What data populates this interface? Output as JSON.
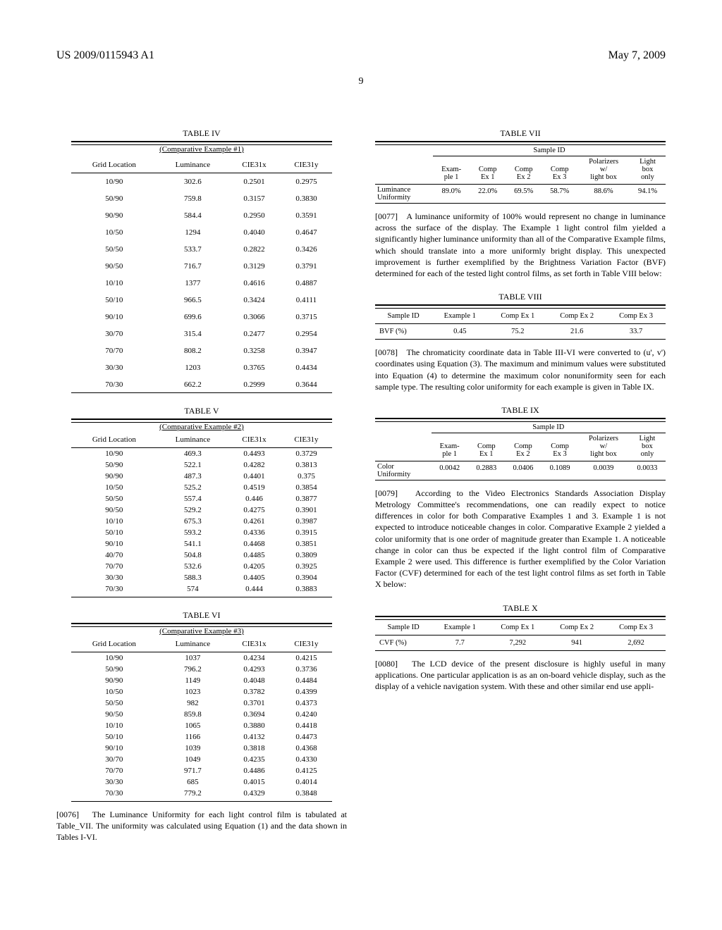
{
  "header": {
    "left": "US 2009/0115943 A1",
    "right": "May 7, 2009",
    "pagenum": "9"
  },
  "table4": {
    "title": "TABLE IV",
    "sub": "(Comparative Example #1)",
    "cols": [
      "Grid Location",
      "Luminance",
      "CIE31x",
      "CIE31y"
    ],
    "rows": [
      [
        "10/90",
        "302.6",
        "0.2501",
        "0.2975"
      ],
      [
        "50/90",
        "759.8",
        "0.3157",
        "0.3830"
      ],
      [
        "90/90",
        "584.4",
        "0.2950",
        "0.3591"
      ],
      [
        "10/50",
        "1294",
        "0.4040",
        "0.4647"
      ],
      [
        "50/50",
        "533.7",
        "0.2822",
        "0.3426"
      ],
      [
        "90/50",
        "716.7",
        "0.3129",
        "0.3791"
      ],
      [
        "10/10",
        "1377",
        "0.4616",
        "0.4887"
      ],
      [
        "50/10",
        "966.5",
        "0.3424",
        "0.4111"
      ],
      [
        "90/10",
        "699.6",
        "0.3066",
        "0.3715"
      ],
      [
        "30/70",
        "315.4",
        "0.2477",
        "0.2954"
      ],
      [
        "70/70",
        "808.2",
        "0.3258",
        "0.3947"
      ],
      [
        "30/30",
        "1203",
        "0.3765",
        "0.4434"
      ],
      [
        "70/30",
        "662.2",
        "0.2999",
        "0.3644"
      ]
    ]
  },
  "table5": {
    "title": "TABLE V",
    "sub": "(Comparative Example #2)",
    "cols": [
      "Grid Location",
      "Luminance",
      "CIE31x",
      "CIE31y"
    ],
    "rows": [
      [
        "10/90",
        "469.3",
        "0.4493",
        "0.3729"
      ],
      [
        "50/90",
        "522.1",
        "0.4282",
        "0.3813"
      ],
      [
        "90/90",
        "487.3",
        "0.4401",
        "0.375"
      ],
      [
        "10/50",
        "525.2",
        "0.4519",
        "0.3854"
      ],
      [
        "50/50",
        "557.4",
        "0.446",
        "0.3877"
      ],
      [
        "90/50",
        "529.2",
        "0.4275",
        "0.3901"
      ],
      [
        "10/10",
        "675.3",
        "0.4261",
        "0.3987"
      ],
      [
        "50/10",
        "593.2",
        "0.4336",
        "0.3915"
      ],
      [
        "90/10",
        "541.1",
        "0.4468",
        "0.3851"
      ],
      [
        "40/70",
        "504.8",
        "0.4485",
        "0.3809"
      ],
      [
        "70/70",
        "532.6",
        "0.4205",
        "0.3925"
      ],
      [
        "30/30",
        "588.3",
        "0.4405",
        "0.3904"
      ],
      [
        "70/30",
        "574",
        "0.444",
        "0.3883"
      ]
    ]
  },
  "table6": {
    "title": "TABLE VI",
    "sub": "(Comparative Example #3)",
    "cols": [
      "Grid Location",
      "Luminance",
      "CIE31x",
      "CIE31y"
    ],
    "rows": [
      [
        "10/90",
        "1037",
        "0.4234",
        "0.4215"
      ],
      [
        "50/90",
        "796.2",
        "0.4293",
        "0.3736"
      ],
      [
        "90/90",
        "1149",
        "0.4048",
        "0.4484"
      ],
      [
        "10/50",
        "1023",
        "0.3782",
        "0.4399"
      ],
      [
        "50/50",
        "982",
        "0.3701",
        "0.4373"
      ],
      [
        "90/50",
        "859.8",
        "0.3694",
        "0.4240"
      ],
      [
        "10/10",
        "1065",
        "0.3880",
        "0.4418"
      ],
      [
        "50/10",
        "1166",
        "0.4132",
        "0.4473"
      ],
      [
        "90/10",
        "1039",
        "0.3818",
        "0.4368"
      ],
      [
        "30/70",
        "1049",
        "0.4235",
        "0.4330"
      ],
      [
        "70/70",
        "971.7",
        "0.4486",
        "0.4125"
      ],
      [
        "30/30",
        "685",
        "0.4015",
        "0.4014"
      ],
      [
        "70/30",
        "779.2",
        "0.4329",
        "0.3848"
      ]
    ]
  },
  "para76": {
    "num": "[0076]",
    "text": "The Luminance Uniformity for each light control film is tabulated at Table_VII. The uniformity was calculated using Equation (1) and the data shown in Tables I-VI."
  },
  "table7": {
    "title": "TABLE VII",
    "grouphdr": "Sample ID",
    "cols": [
      "",
      "Exam-\nple 1",
      "Comp\nEx 1",
      "Comp\nEx 2",
      "Comp\nEx 3",
      "Polarizers\nw/\nlight box",
      "Light\nbox\nonly"
    ],
    "rowlabel": "Luminance Uniformity",
    "vals": [
      "89.0%",
      "22.0%",
      "69.5%",
      "58.7%",
      "88.6%",
      "94.1%"
    ]
  },
  "para77": {
    "num": "[0077]",
    "text": "A luminance uniformity of 100% would represent no change in luminance across the surface of the display. The Example 1 light control film yielded a significantly higher luminance uniformity than all of the Comparative Example films, which should translate into a more uniformly bright display. This unexpected improvement is further exemplified by the Brightness Variation Factor (BVF) determined for each of the tested light control films, as set forth in Table VIII below:"
  },
  "table8": {
    "title": "TABLE VIII",
    "cols": [
      "Sample ID",
      "Example 1",
      "Comp Ex 1",
      "Comp Ex 2",
      "Comp Ex 3"
    ],
    "rowlabel": "BVF (%)",
    "vals": [
      "0.45",
      "75.2",
      "21.6",
      "33.7"
    ]
  },
  "para78": {
    "num": "[0078]",
    "text": "The chromaticity coordinate data in Table III-VI were converted to (u', v') coordinates using Equation (3). The maximum and minimum values were substituted into Equation (4) to determine the maximum color nonuniformity seen for each sample type. The resulting color uniformity for each example is given in Table IX."
  },
  "table9": {
    "title": "TABLE IX",
    "grouphdr": "Sample ID",
    "cols": [
      "",
      "Exam-\nple 1",
      "Comp\nEx 1",
      "Comp\nEx 2",
      "Comp\nEx 3",
      "Polarizers\nw/\nlight box",
      "Light\nbox\nonly"
    ],
    "rowlabel": "Color Uniformity",
    "vals": [
      "0.0042",
      "0.2883",
      "0.0406",
      "0.1089",
      "0.0039",
      "0.0033"
    ]
  },
  "para79": {
    "num": "[0079]",
    "text": "According to the Video Electronics Standards Association Display Metrology Committee's recommendations, one can readily expect to notice differences in color for both Comparative Examples 1 and 3. Example 1 is not expected to introduce noticeable changes in color. Comparative Example 2 yielded a color uniformity that is one order of magnitude greater than Example 1. A noticeable change in color can thus be expected if the light control film of Comparative Example 2 were used. This difference is further exemplified by the Color Variation Factor (CVF) determined for each of the test light control films as set forth in Table X below:"
  },
  "table10": {
    "title": "TABLE X",
    "cols": [
      "Sample ID",
      "Example 1",
      "Comp Ex 1",
      "Comp Ex 2",
      "Comp Ex 3"
    ],
    "rowlabel": "CVF (%)",
    "vals": [
      "7.7",
      "7,292",
      "941",
      "2,692"
    ]
  },
  "para80": {
    "num": "[0080]",
    "text": "The LCD device of the present disclosure is highly useful in many applications. One particular application is as an on-board vehicle display, such as the display of a vehicle navigation system. With these and other similar end use appli-"
  }
}
